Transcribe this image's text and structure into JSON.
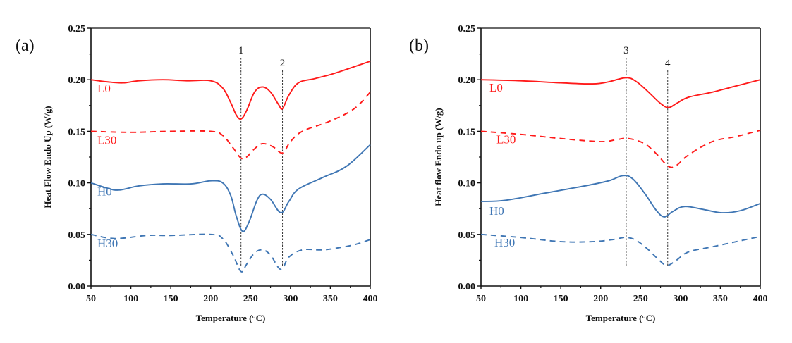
{
  "chart_data": [
    {
      "type": "line",
      "panel": "(a)",
      "xlabel": "Temperature (°C)",
      "ylabel": "Heat Flow Endo Up (W/g)",
      "xlim": [
        50,
        400
      ],
      "ylim": [
        0,
        0.25
      ],
      "xticks": [
        "50",
        "100",
        "150",
        "200",
        "250",
        "300",
        "350",
        "400"
      ],
      "yticks": [
        "0.00",
        "0.05",
        "0.10",
        "0.15",
        "0.20",
        "0.25"
      ],
      "grid": false,
      "markers": [
        {
          "label": "1",
          "x": 238
        },
        {
          "label": "2",
          "x": 290
        }
      ],
      "series": [
        {
          "name": "L0",
          "color": "#ff1a1a",
          "dash": false,
          "x": [
            50,
            70,
            90,
            110,
            140,
            170,
            200,
            215,
            225,
            232,
            238,
            245,
            255,
            265,
            275,
            285,
            290,
            298,
            310,
            330,
            350,
            370,
            400
          ],
          "y": [
            0.2,
            0.198,
            0.197,
            0.199,
            0.2,
            0.199,
            0.199,
            0.192,
            0.178,
            0.166,
            0.162,
            0.17,
            0.188,
            0.193,
            0.188,
            0.176,
            0.172,
            0.185,
            0.197,
            0.201,
            0.205,
            0.21,
            0.218
          ]
        },
        {
          "name": "L30",
          "color": "#ff1a1a",
          "dash": true,
          "x": [
            50,
            100,
            150,
            200,
            215,
            228,
            238,
            245,
            255,
            265,
            278,
            290,
            300,
            315,
            350,
            380,
            400
          ],
          "y": [
            0.15,
            0.149,
            0.15,
            0.15,
            0.146,
            0.134,
            0.124,
            0.125,
            0.133,
            0.138,
            0.135,
            0.129,
            0.14,
            0.15,
            0.16,
            0.172,
            0.188
          ]
        },
        {
          "name": "H0",
          "color": "#3f76b4",
          "dash": false,
          "x": [
            50,
            70,
            85,
            110,
            140,
            175,
            200,
            215,
            225,
            232,
            240,
            248,
            258,
            265,
            275,
            288,
            298,
            310,
            340,
            370,
            400
          ],
          "y": [
            0.1,
            0.095,
            0.093,
            0.097,
            0.099,
            0.099,
            0.102,
            0.1,
            0.088,
            0.068,
            0.053,
            0.062,
            0.083,
            0.089,
            0.084,
            0.071,
            0.082,
            0.094,
            0.105,
            0.116,
            0.137
          ]
        },
        {
          "name": "H30",
          "color": "#3f76b4",
          "dash": true,
          "x": [
            50,
            80,
            120,
            150,
            200,
            215,
            228,
            238,
            245,
            255,
            265,
            275,
            288,
            298,
            315,
            340,
            360,
            380,
            400
          ],
          "y": [
            0.05,
            0.046,
            0.049,
            0.049,
            0.05,
            0.046,
            0.03,
            0.014,
            0.021,
            0.032,
            0.035,
            0.03,
            0.016,
            0.028,
            0.035,
            0.035,
            0.037,
            0.04,
            0.045
          ]
        }
      ]
    },
    {
      "type": "line",
      "panel": "(b)",
      "xlabel": "Temperature (°C)",
      "ylabel": "Heat flow Endo up (W/g)",
      "xlim": [
        50,
        400
      ],
      "ylim": [
        0,
        0.25
      ],
      "xticks": [
        "50",
        "100",
        "150",
        "200",
        "250",
        "300",
        "350",
        "400"
      ],
      "yticks": [
        "0.00",
        "0.05",
        "0.10",
        "0.15",
        "0.20",
        "0.25"
      ],
      "grid": false,
      "markers": [
        {
          "label": "3",
          "x": 232
        },
        {
          "label": "4",
          "x": 284
        }
      ],
      "series": [
        {
          "name": "L0",
          "color": "#ff1a1a",
          "dash": false,
          "x": [
            50,
            100,
            150,
            190,
            210,
            232,
            245,
            260,
            275,
            285,
            295,
            310,
            340,
            370,
            400
          ],
          "y": [
            0.2,
            0.199,
            0.197,
            0.196,
            0.198,
            0.202,
            0.198,
            0.188,
            0.177,
            0.173,
            0.177,
            0.183,
            0.188,
            0.194,
            0.2
          ]
        },
        {
          "name": "L30",
          "color": "#ff1a1a",
          "dash": true,
          "x": [
            50,
            100,
            150,
            200,
            220,
            235,
            255,
            270,
            285,
            295,
            310,
            340,
            370,
            400
          ],
          "y": [
            0.15,
            0.147,
            0.143,
            0.14,
            0.142,
            0.143,
            0.138,
            0.128,
            0.116,
            0.117,
            0.127,
            0.14,
            0.145,
            0.151
          ]
        },
        {
          "name": "H0",
          "color": "#3f76b4",
          "dash": false,
          "x": [
            50,
            80,
            130,
            180,
            210,
            228,
            240,
            255,
            270,
            280,
            290,
            305,
            330,
            352,
            375,
            400
          ],
          "y": [
            0.082,
            0.083,
            0.09,
            0.097,
            0.102,
            0.107,
            0.104,
            0.09,
            0.073,
            0.067,
            0.072,
            0.077,
            0.074,
            0.071,
            0.073,
            0.08
          ]
        },
        {
          "name": "H30",
          "color": "#3f76b4",
          "dash": true,
          "x": [
            50,
            100,
            150,
            190,
            215,
            232,
            245,
            260,
            272,
            283,
            295,
            310,
            340,
            370,
            400
          ],
          "y": [
            0.05,
            0.047,
            0.043,
            0.043,
            0.045,
            0.047,
            0.044,
            0.035,
            0.026,
            0.02,
            0.025,
            0.033,
            0.038,
            0.043,
            0.048
          ]
        }
      ]
    }
  ]
}
